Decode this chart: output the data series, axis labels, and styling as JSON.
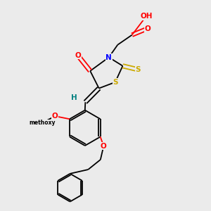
{
  "background_color": "#ebebeb",
  "atom_colors": {
    "C": "#000000",
    "N": "#0000ff",
    "O": "#ff0000",
    "S": "#ccaa00",
    "H": "#008080"
  },
  "bond_color": "#000000"
}
